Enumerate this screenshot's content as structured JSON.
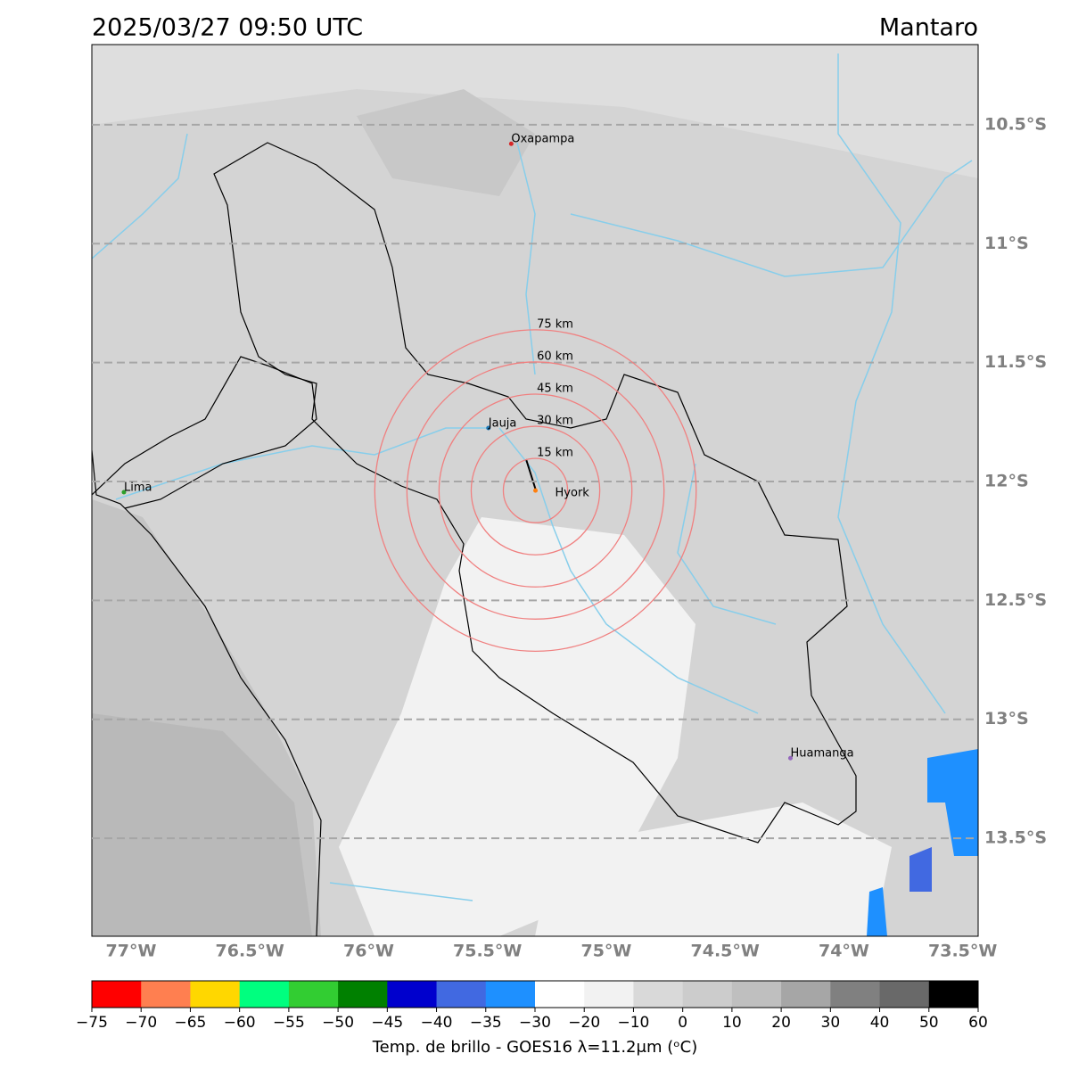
{
  "header": {
    "title": "2025/03/27 09:50 UTC",
    "region": "Mantaro"
  },
  "map": {
    "xlim": [
      -77.165,
      -73.435
    ],
    "ylim": [
      -10.163,
      -13.912
    ],
    "xticks": [
      {
        "value": -77,
        "label": "77°W"
      },
      {
        "value": -76.5,
        "label": "76.5°W"
      },
      {
        "value": -76,
        "label": "76°W"
      },
      {
        "value": -75.5,
        "label": "75.5°W"
      },
      {
        "value": -75,
        "label": "75°W"
      },
      {
        "value": -74.5,
        "label": "74.5°W"
      },
      {
        "value": -74,
        "label": "74°W"
      },
      {
        "value": -73.5,
        "label": "73.5°W"
      }
    ],
    "yticks": [
      {
        "value": -10.5,
        "label": "10.5°S"
      },
      {
        "value": -11,
        "label": "11°S"
      },
      {
        "value": -11.5,
        "label": "11.5°S"
      },
      {
        "value": -12,
        "label": "12°S"
      },
      {
        "value": -12.5,
        "label": "12.5°S"
      },
      {
        "value": -13,
        "label": "13°S"
      },
      {
        "value": -13.5,
        "label": "13.5°S"
      }
    ],
    "cities": [
      {
        "name": "Oxapampa",
        "lon": -75.4,
        "lat": -10.58,
        "color": "#d62728"
      },
      {
        "name": "Jauja",
        "lon": -75.496,
        "lat": -11.775,
        "color": "#1f77b4"
      },
      {
        "name": "Lima",
        "lon": -77.03,
        "lat": -12.045,
        "color": "#2ca02c"
      },
      {
        "name": "Hyork",
        "lon": -75.298,
        "lat": -12.038,
        "color": "#ff7f0e"
      },
      {
        "name": "Huamanga",
        "lon": -74.225,
        "lat": -13.163,
        "color": "#9467bd"
      }
    ],
    "rings": [
      {
        "value": 15,
        "label": "15 km"
      },
      {
        "value": 30,
        "label": "30 km"
      },
      {
        "value": 45,
        "label": "45 km"
      },
      {
        "value": 60,
        "label": "60 km"
      },
      {
        "value": 75,
        "label": "75 km"
      }
    ]
  },
  "colorbar": {
    "label": "Temp. de brillo - GOES16 λ=11.2μm (ᵒC)",
    "ticks": [
      {
        "value": -75,
        "label": "−75"
      },
      {
        "value": -70,
        "label": "−70"
      },
      {
        "value": -65,
        "label": "−65"
      },
      {
        "value": -60,
        "label": "−60"
      },
      {
        "value": -55,
        "label": "−55"
      },
      {
        "value": -50,
        "label": "−50"
      },
      {
        "value": -45,
        "label": "−45"
      },
      {
        "value": -40,
        "label": "−40"
      },
      {
        "value": -35,
        "label": "−35"
      },
      {
        "value": -30,
        "label": "−30"
      },
      {
        "value": -20,
        "label": "−20"
      },
      {
        "value": -10,
        "label": "−10"
      },
      0,
      10,
      20,
      30,
      40,
      50,
      60
    ],
    "colors": [
      "#ff0000",
      "#ff7f50",
      "#ffd700",
      "#00ff7f",
      "#32cd32",
      "#008000",
      "#0000cd",
      "#4169e1",
      "#1e90ff",
      "#ffffff",
      "#f2f2f2",
      "#d9d9d9",
      "#cccccc",
      "#bfbfbf",
      "#a6a6a6",
      "#808080",
      "#696969",
      "#000000"
    ]
  }
}
